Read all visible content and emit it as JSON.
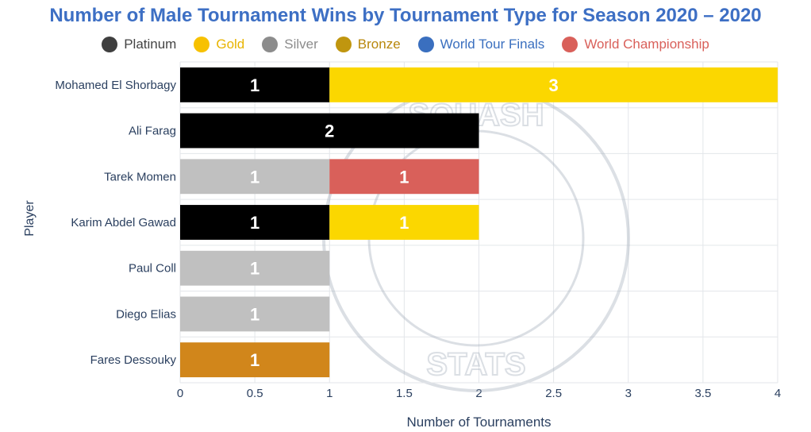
{
  "chart_data": {
    "type": "bar",
    "orientation": "horizontal",
    "stacked": true,
    "title": "Number of Male Tournament Wins by Tournament Type for Season 2020 – 2020",
    "xlabel": "Number of Tournaments",
    "ylabel": "Player",
    "xlim": [
      0,
      4
    ],
    "x_ticks": [
      "0",
      "0.5",
      "1",
      "1.5",
      "2",
      "2.5",
      "3",
      "3.5",
      "4"
    ],
    "grid": true,
    "legend_position": "top",
    "categories": [
      "Mohamed El Shorbagy",
      "Ali Farag",
      "Tarek Momen",
      "Karim Abdel Gawad",
      "Paul Coll",
      "Diego Elias",
      "Fares Dessouky"
    ],
    "series": [
      {
        "name": "Platinum",
        "color": "#000000",
        "legend_color": "#3f3f3f",
        "text_color": "#444444",
        "values": [
          1,
          2,
          0,
          1,
          0,
          0,
          0
        ]
      },
      {
        "name": "Gold",
        "color": "#fbd700",
        "legend_color": "#f7c100",
        "text_color": "#e8b400",
        "values": [
          3,
          0,
          0,
          1,
          0,
          0,
          0
        ]
      },
      {
        "name": "Silver",
        "color": "#c0c0c0",
        "legend_color": "#8c8c8c",
        "text_color": "#8c8c8c",
        "values": [
          0,
          0,
          1,
          0,
          1,
          1,
          0
        ]
      },
      {
        "name": "Bronze",
        "color": "#d1861b",
        "legend_color": "#c0960f",
        "text_color": "#b8870b",
        "values": [
          0,
          0,
          0,
          0,
          0,
          0,
          1
        ]
      },
      {
        "name": "World Tour Finals",
        "color": "#3a6fbf",
        "legend_color": "#3a6fbf",
        "text_color": "#3a6fbf",
        "values": [
          0,
          0,
          0,
          0,
          0,
          0,
          0
        ]
      },
      {
        "name": "World Championship",
        "color": "#d9605a",
        "legend_color": "#d9605a",
        "text_color": "#d9605a",
        "values": [
          0,
          0,
          1,
          0,
          0,
          0,
          0
        ]
      }
    ],
    "watermark": {
      "top_text": "SQUASH",
      "bottom_text": "STATS"
    }
  }
}
